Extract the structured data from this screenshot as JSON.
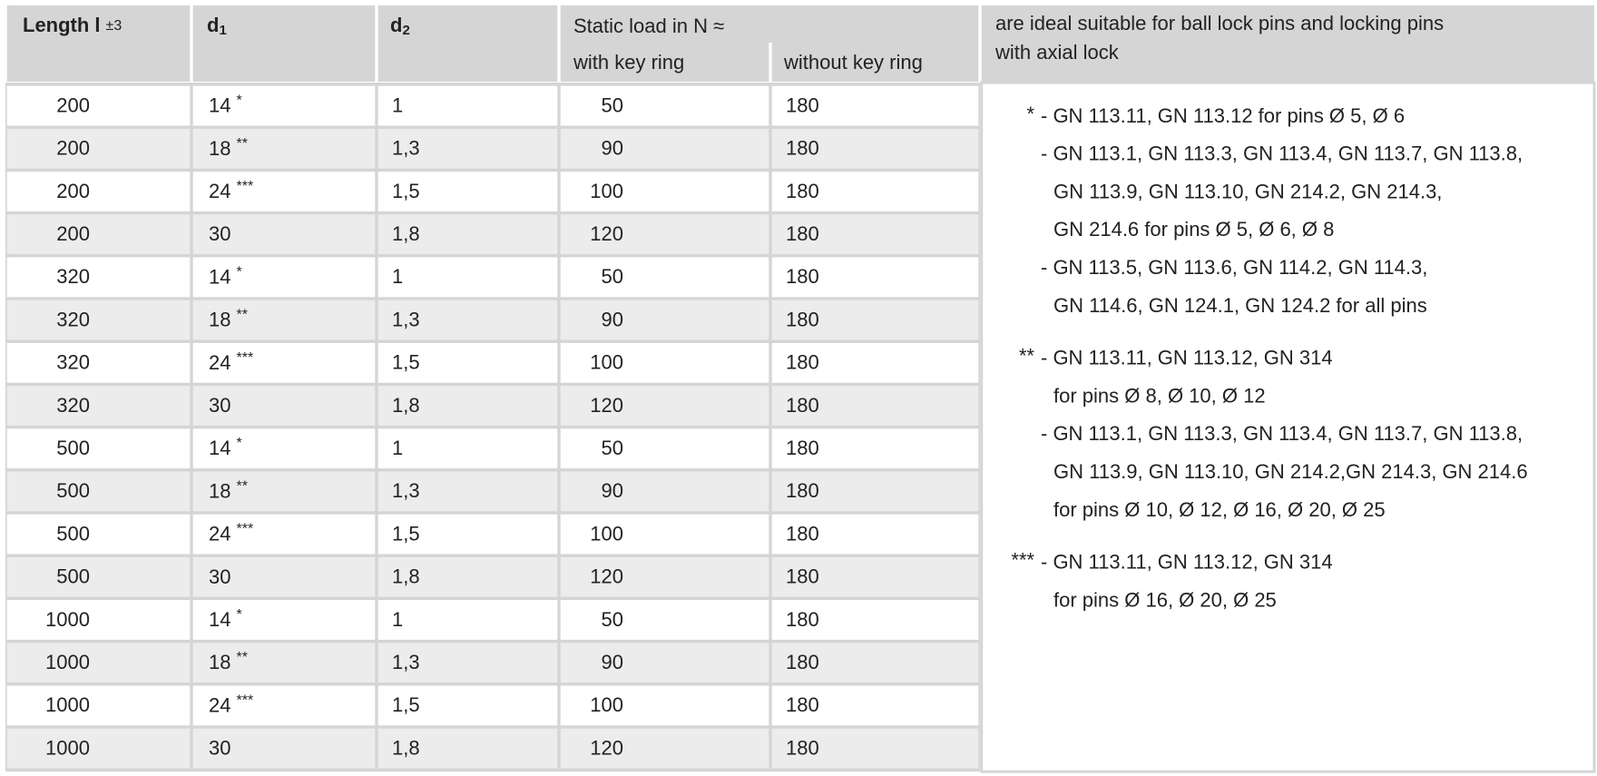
{
  "header": {
    "length": "Length l",
    "tolerance": "±3",
    "d1": "d",
    "d1_sub": "1",
    "d2": "d",
    "d2_sub": "2",
    "static_load": "Static load in N ≈",
    "with_key_ring": "with key ring",
    "without_key_ring": "without key ring",
    "note_title": [
      "are ideal suitable for ball lock pins and locking pins",
      "with axial lock"
    ]
  },
  "rows": [
    {
      "l": "200",
      "d1": "14",
      "mark": "*",
      "d2": "1",
      "with": "50",
      "without": "180"
    },
    {
      "l": "200",
      "d1": "18",
      "mark": "**",
      "d2": "1,3",
      "with": "90",
      "without": "180"
    },
    {
      "l": "200",
      "d1": "24",
      "mark": "***",
      "d2": "1,5",
      "with": "100",
      "without": "180"
    },
    {
      "l": "200",
      "d1": "30",
      "d2": "1,8",
      "with": "120",
      "without": "180"
    },
    {
      "l": "320",
      "d1": "14",
      "mark": "*",
      "d2": "1",
      "with": "50",
      "without": "180"
    },
    {
      "l": "320",
      "d1": "18",
      "mark": "**",
      "d2": "1,3",
      "with": "90",
      "without": "180"
    },
    {
      "l": "320",
      "d1": "24",
      "mark": "***",
      "d2": "1,5",
      "with": "100",
      "without": "180"
    },
    {
      "l": "320",
      "d1": "30",
      "d2": "1,8",
      "with": "120",
      "without": "180"
    },
    {
      "l": "500",
      "d1": "14",
      "mark": "*",
      "d2": "1",
      "with": "50",
      "without": "180"
    },
    {
      "l": "500",
      "d1": "18",
      "mark": "**",
      "d2": "1,3",
      "with": "90",
      "without": "180"
    },
    {
      "l": "500",
      "d1": "24",
      "mark": "***",
      "d2": "1,5",
      "with": "100",
      "without": "180"
    },
    {
      "l": "500",
      "d1": "30",
      "d2": "1,8",
      "with": "120",
      "without": "180"
    },
    {
      "l": "1000",
      "d1": "14",
      "mark": "*",
      "d2": "1",
      "with": "50",
      "without": "180"
    },
    {
      "l": "1000",
      "d1": "18",
      "mark": "**",
      "d2": "1,3",
      "with": "90",
      "without": "180"
    },
    {
      "l": "1000",
      "d1": "24",
      "mark": "***",
      "d2": "1,5",
      "with": "100",
      "without": "180"
    },
    {
      "l": "1000",
      "d1": "30",
      "d2": "1,8",
      "with": "120",
      "without": "180"
    }
  ],
  "notes": [
    {
      "mark": "*",
      "items": [
        [
          "- GN 113.11, GN 113.12 for pins Ø 5, Ø 6"
        ],
        [
          "- GN 113.1, GN 113.3, GN 113.4, GN 113.7, GN 113.8,",
          "GN 113.9, GN 113.10, GN 214.2, GN 214.3,",
          "GN 214.6 for pins Ø 5, Ø 6, Ø 8"
        ],
        [
          "- GN 113.5, GN 113.6, GN 114.2, GN 114.3,",
          "GN 114.6, GN 124.1, GN 124.2 for all pins"
        ]
      ]
    },
    {
      "mark": "**",
      "items": [
        [
          "- GN 113.11, GN 113.12, GN 314",
          "for pins Ø 8, Ø 10, Ø 12"
        ],
        [
          "- GN 113.1, GN 113.3, GN 113.4, GN 113.7, GN 113.8,",
          "GN 113.9, GN 113.10, GN 214.2,GN 214.3, GN 214.6",
          "for pins Ø 10, Ø 12, Ø 16, Ø 20, Ø 25"
        ]
      ]
    },
    {
      "mark": "***",
      "items": [
        [
          "- GN 113.11, GN 113.12, GN 314",
          "for pins Ø 16, Ø 20, Ø 25"
        ]
      ]
    }
  ]
}
